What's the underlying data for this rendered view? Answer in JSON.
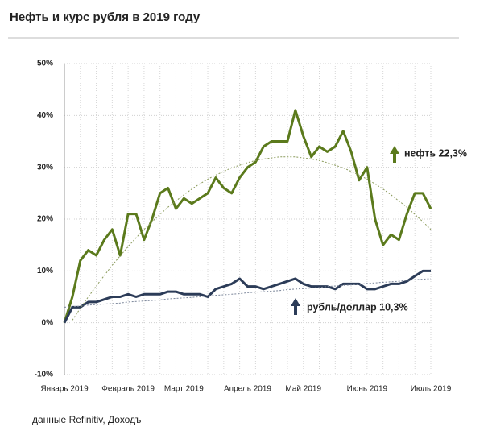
{
  "chart_data": {
    "type": "line",
    "title": "Нефть и курс рубля в 2019 году",
    "source": "данные  Refinitiv, Доходъ",
    "categories": [
      "Январь 2019",
      null,
      null,
      null,
      null,
      null,
      null,
      null,
      "Февраль 2019",
      null,
      null,
      null,
      null,
      null,
      null,
      "Март 2019",
      null,
      null,
      null,
      null,
      null,
      null,
      null,
      "Апрель 2019",
      null,
      null,
      null,
      null,
      null,
      null,
      "Май 2019",
      null,
      null,
      null,
      null,
      null,
      null,
      null,
      "Июнь 2019",
      null,
      null,
      null,
      null,
      null,
      null,
      null,
      "Июль 2019"
    ],
    "series": [
      {
        "name": "нефть",
        "color": "#5b7a1c",
        "values": [
          0,
          5,
          12,
          14,
          13,
          16,
          18,
          13,
          21,
          21,
          16,
          20,
          25,
          26,
          22,
          24,
          23,
          24,
          25,
          28,
          26,
          25,
          28,
          30,
          31,
          34,
          35,
          35,
          35,
          41,
          36,
          32,
          34,
          33,
          34,
          37,
          33,
          27.5,
          30,
          20,
          15,
          17,
          16,
          21,
          25,
          25,
          22
        ]
      },
      {
        "name": "рубль/доллар",
        "color": "#2c3c58",
        "values": [
          0,
          3,
          3,
          4,
          4,
          4.5,
          5,
          5,
          5.5,
          5,
          5.5,
          5.5,
          5.5,
          6,
          6,
          5.5,
          5.5,
          5.5,
          5,
          6.5,
          7,
          7.5,
          8.5,
          7,
          7,
          6.5,
          7,
          7.5,
          8,
          8.5,
          7.5,
          7,
          7,
          7,
          6.5,
          7.5,
          7.5,
          7.5,
          6.5,
          6.5,
          7,
          7.5,
          7.5,
          8,
          9,
          10,
          10
        ]
      },
      {
        "color": "#8a9a5b",
        "dashed": true,
        "values": [
          null,
          0.5,
          2.8,
          5.0,
          7.1,
          9.1,
          11.1,
          12.9,
          14.7,
          16.4,
          18.0,
          19.5,
          20.9,
          22.3,
          23.5,
          24.7,
          25.8,
          26.8,
          27.7,
          28.5,
          29.2,
          29.9,
          30.4,
          30.9,
          31.3,
          31.6,
          31.8,
          32.0,
          32,
          32.0,
          31.8,
          31.6,
          31.3,
          30.9,
          30.4,
          29.9,
          29.2,
          28.5,
          27.7,
          26.8,
          25.8,
          24.7,
          23.5,
          22.3,
          20.9,
          19.5,
          18.0
        ]
      },
      {
        "color": "#7a8599",
        "dashed": true,
        "values": [
          3.0,
          3.1,
          3.2,
          3.4,
          3.5,
          3.6,
          3.7,
          3.8,
          4.0,
          4.1,
          4.2,
          4.3,
          4.4,
          4.6,
          4.7,
          4.8,
          4.9,
          5.0,
          5.2,
          5.3,
          5.4,
          5.5,
          5.6,
          5.8,
          5.9,
          6.0,
          6.1,
          6.2,
          6.4,
          6.5,
          6.6,
          6.7,
          6.8,
          7.0,
          7.1,
          7.2,
          7.3,
          7.4,
          7.6,
          7.7,
          7.8,
          7.9,
          8.0,
          8.2,
          8.3,
          8.4,
          8.5
        ]
      }
    ],
    "annotations": [
      "нефть  22,3%",
      "рубль/доллар   10,3%"
    ],
    "ylim": [
      -10,
      50
    ],
    "yticks": [
      {
        "value": -10,
        "label": "-10%"
      },
      {
        "value": 0,
        "label": "0%"
      },
      {
        "value": 10,
        "label": "10%"
      },
      {
        "value": 20,
        "label": "20%"
      },
      {
        "value": 30,
        "label": "30%"
      },
      {
        "value": 40,
        "label": "40%"
      },
      {
        "value": 50,
        "label": "50%"
      }
    ],
    "grid": true
  }
}
